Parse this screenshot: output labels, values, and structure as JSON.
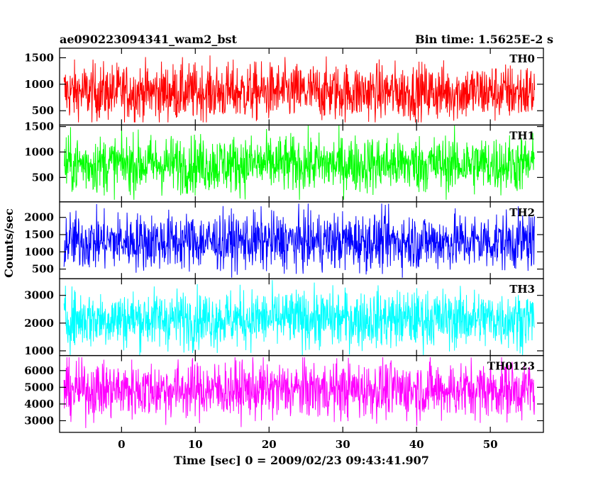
{
  "header": {
    "title": "ae090223094341_wam2_bst",
    "bin_time": "Bin time: 1.5625E-2 s"
  },
  "axes": {
    "xlabel": "Time [sec] 0 = 2009/02/23 09:43:41.907",
    "ylabel": "Counts/sec"
  },
  "chart_data": {
    "type": "line",
    "xlim": [
      -8.4,
      57.2
    ],
    "x_ticks": [
      0,
      10,
      20,
      30,
      40,
      50
    ],
    "x_data_range": [
      -7.8,
      56
    ],
    "grid": false,
    "panels": [
      {
        "name": "TH0",
        "color": "#ff0000",
        "ylim": [
          230,
          1680
        ],
        "y_ticks": [
          500,
          1000,
          1500
        ],
        "mean": 850,
        "min": 280,
        "max": 1680
      },
      {
        "name": "TH1",
        "color": "#00ff00",
        "ylim": [
          20,
          1530
        ],
        "y_ticks": [
          500,
          1000,
          1500
        ],
        "mean": 760,
        "min": 60,
        "max": 1520
      },
      {
        "name": "TH2",
        "color": "#0000ff",
        "ylim": [
          220,
          2450
        ],
        "y_ticks": [
          500,
          1000,
          1500,
          2000
        ],
        "mean": 1300,
        "min": 250,
        "max": 2400
      },
      {
        "name": "TH3",
        "color": "#00ffff",
        "ylim": [
          830,
          3600
        ],
        "y_ticks": [
          1000,
          2000,
          3000
        ],
        "mean": 2150,
        "min": 850,
        "max": 3550
      },
      {
        "name": "TH0123",
        "color": "#ff00ff",
        "ylim": [
          2300,
          6900
        ],
        "y_ticks": [
          3000,
          4000,
          5000,
          6000
        ],
        "mean": 4850,
        "min": 2350,
        "max": 6800
      }
    ]
  }
}
